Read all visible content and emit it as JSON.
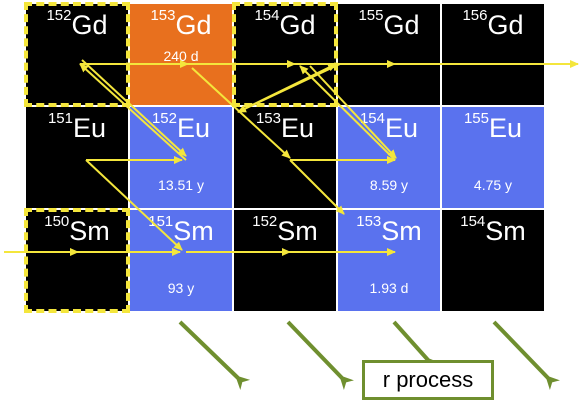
{
  "colors": {
    "stable": "#000000",
    "unstable": "#5a72ee",
    "highlight": "#e8701e",
    "s_path": "#f4e63c",
    "r_arrow": "#6f8f2f"
  },
  "rows": [
    {
      "element": "Gd",
      "cells": [
        {
          "mass": "152",
          "symbol": "Gd",
          "half_life": "",
          "kind": "stable",
          "dashed": true
        },
        {
          "mass": "153",
          "symbol": "Gd",
          "half_life": "240 d",
          "kind": "highlight",
          "dashed": false
        },
        {
          "mass": "154",
          "symbol": "Gd",
          "half_life": "",
          "kind": "stable",
          "dashed": true
        },
        {
          "mass": "155",
          "symbol": "Gd",
          "half_life": "",
          "kind": "stable",
          "dashed": false
        },
        {
          "mass": "156",
          "symbol": "Gd",
          "half_life": "",
          "kind": "stable",
          "dashed": false
        }
      ]
    },
    {
      "element": "Eu",
      "cells": [
        {
          "mass": "151",
          "symbol": "Eu",
          "half_life": "",
          "kind": "stable",
          "dashed": false
        },
        {
          "mass": "152",
          "symbol": "Eu",
          "half_life": "13.51 y",
          "kind": "unstable",
          "dashed": false
        },
        {
          "mass": "153",
          "symbol": "Eu",
          "half_life": "",
          "kind": "stable",
          "dashed": false
        },
        {
          "mass": "154",
          "symbol": "Eu",
          "half_life": "8.59 y",
          "kind": "unstable",
          "dashed": false
        },
        {
          "mass": "155",
          "symbol": "Eu",
          "half_life": "4.75 y",
          "kind": "unstable",
          "dashed": false
        }
      ]
    },
    {
      "element": "Sm",
      "cells": [
        {
          "mass": "150",
          "symbol": "Sm",
          "half_life": "",
          "kind": "stable",
          "dashed": true
        },
        {
          "mass": "151",
          "symbol": "Sm",
          "half_life": "93 y",
          "kind": "unstable",
          "dashed": false
        },
        {
          "mass": "152",
          "symbol": "Sm",
          "half_life": "",
          "kind": "stable",
          "dashed": false
        },
        {
          "mass": "153",
          "symbol": "Sm",
          "half_life": "1.93 d",
          "kind": "unstable",
          "dashed": false
        },
        {
          "mass": "154",
          "symbol": "Sm",
          "half_life": "",
          "kind": "stable",
          "dashed": false
        }
      ]
    }
  ],
  "r_process_label": "r process"
}
